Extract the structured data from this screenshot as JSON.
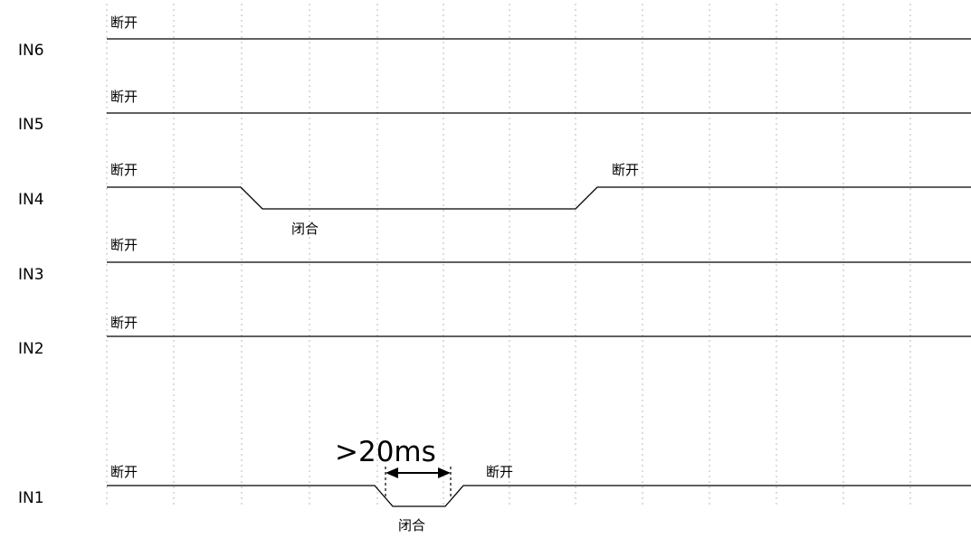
{
  "channels": {
    "in6": {
      "name": "IN6",
      "open_label": "断开"
    },
    "in5": {
      "name": "IN5",
      "open_label": "断开"
    },
    "in4": {
      "name": "IN4",
      "open_label": "断开",
      "closed_label": "闭合",
      "reopen_label": "断开"
    },
    "in3": {
      "name": "IN3",
      "open_label": "断开"
    },
    "in2": {
      "name": "IN2",
      "open_label": "断开"
    },
    "in1": {
      "name": "IN1",
      "open_label": "断开",
      "closed_label": "闭合",
      "reopen_label": "断开"
    }
  },
  "timing_annotation": {
    "label": ">20ms"
  }
}
